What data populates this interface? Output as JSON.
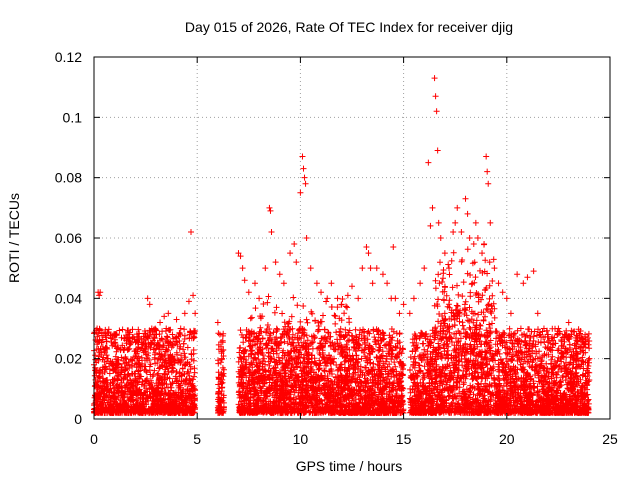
{
  "chart_data": {
    "type": "scatter",
    "title": "Day 015 of 2026, Rate Of TEC Index for receiver djig",
    "xlabel": "GPS time / hours",
    "ylabel": "ROTI / TECUs",
    "xlim": [
      0,
      25
    ],
    "ylim": [
      0,
      0.12
    ],
    "xticks": [
      0,
      5,
      10,
      15,
      20,
      25
    ],
    "xtick_labels": [
      "0",
      "5",
      "10",
      "15",
      "20",
      "25"
    ],
    "yticks": [
      0,
      0.02,
      0.04,
      0.06,
      0.08,
      0.1,
      0.12
    ],
    "ytick_labels": [
      "0",
      "0.02",
      "0.04",
      "0.06",
      "0.08",
      "0.1",
      "0.12"
    ],
    "grid": true,
    "marker": "+",
    "marker_color": "#ff0000",
    "series": [
      {
        "name": "ROTI",
        "x": [
          0.0,
          0.1,
          0.15,
          0.2,
          0.25,
          0.3,
          0.35,
          0.4,
          0.5,
          0.6,
          0.8,
          1.0,
          1.2,
          1.5,
          1.8,
          2.0,
          2.2,
          2.4,
          2.6,
          2.7,
          2.8,
          3.0,
          3.2,
          3.4,
          3.5,
          3.6,
          3.8,
          4.0,
          4.2,
          4.4,
          4.6,
          4.7,
          4.8,
          4.9,
          6.0,
          6.1,
          6.2,
          7.0,
          7.1,
          7.2,
          7.3,
          7.5,
          7.8,
          8.0,
          8.3,
          8.5,
          8.55,
          8.6,
          8.8,
          9.0,
          9.2,
          9.5,
          9.7,
          9.8,
          10.0,
          10.1,
          10.15,
          10.2,
          10.25,
          10.3,
          10.5,
          10.8,
          11.0,
          11.3,
          11.5,
          11.8,
          12.0,
          12.3,
          12.5,
          12.8,
          13.0,
          13.2,
          13.3,
          13.4,
          13.5,
          13.7,
          14.0,
          14.2,
          14.4,
          14.5,
          14.6,
          14.8,
          15.0,
          15.3,
          15.5,
          15.8,
          16.0,
          16.2,
          16.3,
          16.4,
          16.5,
          16.55,
          16.6,
          16.65,
          16.7,
          16.8,
          17.0,
          17.2,
          17.4,
          17.5,
          17.6,
          17.8,
          18.0,
          18.1,
          18.2,
          18.4,
          18.5,
          18.6,
          18.8,
          18.9,
          19.0,
          19.05,
          19.1,
          19.2,
          19.4,
          19.6,
          19.8,
          20.0,
          20.2,
          20.5,
          20.8,
          21.0,
          21.3,
          21.5,
          21.8,
          22.0,
          22.3,
          22.5,
          22.8,
          23.0,
          23.3,
          23.5,
          23.8,
          24.0
        ],
        "y": [
          0.018,
          0.012,
          0.03,
          0.042,
          0.041,
          0.042,
          0.022,
          0.015,
          0.012,
          0.008,
          0.012,
          0.01,
          0.014,
          0.016,
          0.012,
          0.015,
          0.018,
          0.025,
          0.04,
          0.038,
          0.03,
          0.028,
          0.032,
          0.034,
          0.03,
          0.035,
          0.028,
          0.033,
          0.03,
          0.035,
          0.039,
          0.062,
          0.041,
          0.035,
          0.032,
          0.028,
          0.02,
          0.055,
          0.054,
          0.05,
          0.046,
          0.042,
          0.045,
          0.04,
          0.05,
          0.07,
          0.069,
          0.062,
          0.052,
          0.048,
          0.045,
          0.055,
          0.058,
          0.052,
          0.075,
          0.087,
          0.083,
          0.08,
          0.078,
          0.06,
          0.05,
          0.045,
          0.042,
          0.04,
          0.045,
          0.04,
          0.038,
          0.041,
          0.044,
          0.04,
          0.05,
          0.057,
          0.055,
          0.05,
          0.045,
          0.05,
          0.048,
          0.045,
          0.04,
          0.057,
          0.04,
          0.035,
          0.038,
          0.035,
          0.04,
          0.045,
          0.05,
          0.085,
          0.064,
          0.07,
          0.113,
          0.107,
          0.102,
          0.089,
          0.065,
          0.06,
          0.055,
          0.05,
          0.062,
          0.065,
          0.07,
          0.062,
          0.073,
          0.068,
          0.06,
          0.058,
          0.065,
          0.06,
          0.055,
          0.058,
          0.087,
          0.082,
          0.078,
          0.065,
          0.05,
          0.045,
          0.042,
          0.04,
          0.035,
          0.048,
          0.045,
          0.047,
          0.049,
          0.035,
          0.03,
          0.028,
          0.027,
          0.03,
          0.028,
          0.032,
          0.025,
          0.024,
          0.022,
          0.02
        ]
      }
    ]
  }
}
